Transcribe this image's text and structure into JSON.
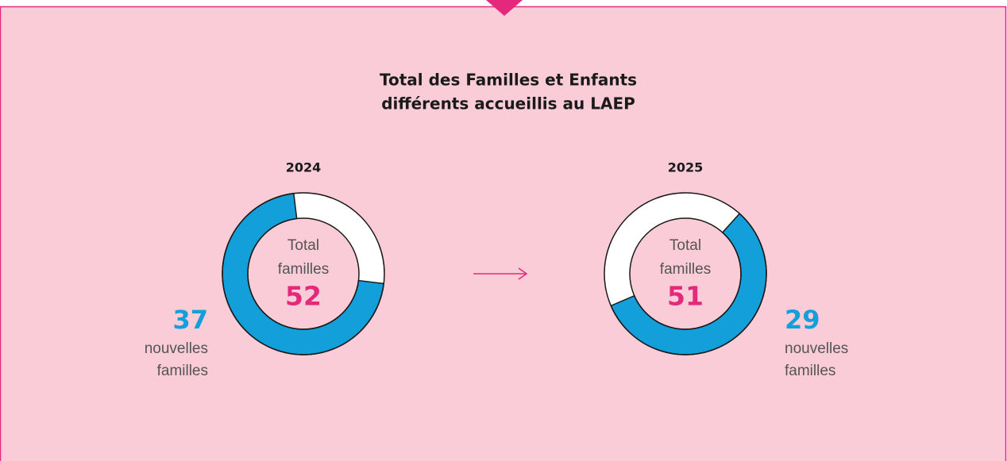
{
  "title": [
    "Total des Familles et Enfants",
    "différents accueillis au LAEP"
  ],
  "chart_data": [
    {
      "type": "donut",
      "subtitle": "2024",
      "center_label": [
        "Total",
        "familles"
      ],
      "total": 52,
      "value": 37,
      "value_label": [
        "nouvelles",
        "familles"
      ],
      "color": "#139fda",
      "rest_color": "#ffffff"
    },
    {
      "type": "donut",
      "subtitle": "2025",
      "center_label": [
        "Total",
        "familles"
      ],
      "total": 51,
      "value": 29,
      "value_label": [
        "nouvelles",
        "familles"
      ],
      "color": "#139fda",
      "rest_color": "#ffffff"
    }
  ]
}
